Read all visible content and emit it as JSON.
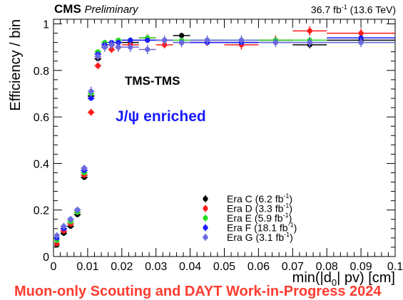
{
  "header": {
    "experiment": "CMS",
    "status": "Preliminary",
    "lumi_energy": "36.7 fb",
    "lumi_sup": "-1",
    "energy": " (13.6 TeV)"
  },
  "annotations": {
    "selection": "TMS-TMS",
    "enrichment": "J/ψ enriched",
    "enrichment_color": "#1a1aff"
  },
  "bottom_banner": "Muon-only Scouting and DAYT Work-in-Progress 2024",
  "chart_data": {
    "type": "scatter",
    "xlabel": "min(|d",
    "xlabel_sub": "0",
    "xlabel_tail": "| pv) [cm]",
    "ylabel": "Efficiency / bin",
    "xlim": [
      0,
      0.1
    ],
    "ylim": [
      0,
      1.02
    ],
    "xticks": [
      "0",
      "0.01",
      "0.02",
      "0.03",
      "0.04",
      "0.05",
      "0.06",
      "0.07",
      "0.08",
      "0.09",
      "0.1"
    ],
    "yticks": [
      "0",
      "0.2",
      "0.4",
      "0.6",
      "0.8",
      "1"
    ],
    "grid": false,
    "legend_position": "bottom-right",
    "series": [
      {
        "name": "Era C (6.2 fb",
        "name_sup": "-1",
        "name_tail": ")",
        "color": "#000000",
        "points": [
          {
            "x": 0.001,
            "y": 0.05,
            "xerr": 0.0005,
            "yerr": 0.01
          },
          {
            "x": 0.003,
            "y": 0.1,
            "xerr": 0.001,
            "yerr": 0.01
          },
          {
            "x": 0.005,
            "y": 0.13,
            "xerr": 0.001,
            "yerr": 0.01
          },
          {
            "x": 0.007,
            "y": 0.18,
            "xerr": 0.001,
            "yerr": 0.01
          },
          {
            "x": 0.009,
            "y": 0.34,
            "xerr": 0.001,
            "yerr": 0.01
          },
          {
            "x": 0.011,
            "y": 0.69,
            "xerr": 0.001,
            "yerr": 0.01
          },
          {
            "x": 0.013,
            "y": 0.85,
            "xerr": 0.001,
            "yerr": 0.01
          },
          {
            "x": 0.015,
            "y": 0.9,
            "xerr": 0.001,
            "yerr": 0.01
          },
          {
            "x": 0.017,
            "y": 0.91,
            "xerr": 0.001,
            "yerr": 0.01
          },
          {
            "x": 0.019,
            "y": 0.92,
            "xerr": 0.001,
            "yerr": 0.01
          },
          {
            "x": 0.0225,
            "y": 0.92,
            "xerr": 0.0025,
            "yerr": 0.012
          },
          {
            "x": 0.0275,
            "y": 0.93,
            "xerr": 0.0025,
            "yerr": 0.012
          },
          {
            "x": 0.0325,
            "y": 0.93,
            "xerr": 0.0025,
            "yerr": 0.012
          },
          {
            "x": 0.0375,
            "y": 0.95,
            "xerr": 0.0025,
            "yerr": 0.012
          },
          {
            "x": 0.045,
            "y": 0.93,
            "xerr": 0.005,
            "yerr": 0.012
          },
          {
            "x": 0.055,
            "y": 0.92,
            "xerr": 0.005,
            "yerr": 0.015
          },
          {
            "x": 0.065,
            "y": 0.93,
            "xerr": 0.005,
            "yerr": 0.015
          },
          {
            "x": 0.075,
            "y": 0.91,
            "xerr": 0.005,
            "yerr": 0.015
          },
          {
            "x": 0.09,
            "y": 0.93,
            "xerr": 0.01,
            "yerr": 0.015
          }
        ]
      },
      {
        "name": "Era D (3.3 fb",
        "name_sup": "-1",
        "name_tail": ")",
        "color": "#ff1a1a",
        "points": [
          {
            "x": 0.001,
            "y": 0.055,
            "xerr": 0.0005,
            "yerr": 0.01
          },
          {
            "x": 0.003,
            "y": 0.11,
            "xerr": 0.001,
            "yerr": 0.012
          },
          {
            "x": 0.005,
            "y": 0.14,
            "xerr": 0.001,
            "yerr": 0.012
          },
          {
            "x": 0.007,
            "y": 0.19,
            "xerr": 0.001,
            "yerr": 0.012
          },
          {
            "x": 0.009,
            "y": 0.35,
            "xerr": 0.001,
            "yerr": 0.012
          },
          {
            "x": 0.011,
            "y": 0.62,
            "xerr": 0.001,
            "yerr": 0.015
          },
          {
            "x": 0.013,
            "y": 0.82,
            "xerr": 0.001,
            "yerr": 0.015
          },
          {
            "x": 0.015,
            "y": 0.91,
            "xerr": 0.001,
            "yerr": 0.015
          },
          {
            "x": 0.017,
            "y": 0.89,
            "xerr": 0.001,
            "yerr": 0.015
          },
          {
            "x": 0.019,
            "y": 0.9,
            "xerr": 0.001,
            "yerr": 0.015
          },
          {
            "x": 0.0225,
            "y": 0.91,
            "xerr": 0.0025,
            "yerr": 0.015
          },
          {
            "x": 0.0275,
            "y": 0.94,
            "xerr": 0.0025,
            "yerr": 0.015
          },
          {
            "x": 0.0325,
            "y": 0.91,
            "xerr": 0.0025,
            "yerr": 0.015
          },
          {
            "x": 0.0375,
            "y": 0.92,
            "xerr": 0.0025,
            "yerr": 0.015
          },
          {
            "x": 0.045,
            "y": 0.92,
            "xerr": 0.005,
            "yerr": 0.015
          },
          {
            "x": 0.055,
            "y": 0.91,
            "xerr": 0.005,
            "yerr": 0.02
          },
          {
            "x": 0.065,
            "y": 0.93,
            "xerr": 0.005,
            "yerr": 0.02
          },
          {
            "x": 0.075,
            "y": 0.97,
            "xerr": 0.005,
            "yerr": 0.02
          },
          {
            "x": 0.09,
            "y": 0.96,
            "xerr": 0.01,
            "yerr": 0.02
          }
        ]
      },
      {
        "name": "Era E (5.9 fb",
        "name_sup": "-1",
        "name_tail": ")",
        "color": "#22dd22",
        "points": [
          {
            "x": 0.001,
            "y": 0.07,
            "xerr": 0.0005,
            "yerr": 0.01
          },
          {
            "x": 0.003,
            "y": 0.12,
            "xerr": 0.001,
            "yerr": 0.01
          },
          {
            "x": 0.005,
            "y": 0.15,
            "xerr": 0.001,
            "yerr": 0.01
          },
          {
            "x": 0.007,
            "y": 0.19,
            "xerr": 0.001,
            "yerr": 0.01
          },
          {
            "x": 0.009,
            "y": 0.36,
            "xerr": 0.001,
            "yerr": 0.01
          },
          {
            "x": 0.011,
            "y": 0.7,
            "xerr": 0.001,
            "yerr": 0.01
          },
          {
            "x": 0.013,
            "y": 0.88,
            "xerr": 0.001,
            "yerr": 0.01
          },
          {
            "x": 0.015,
            "y": 0.92,
            "xerr": 0.001,
            "yerr": 0.01
          },
          {
            "x": 0.017,
            "y": 0.92,
            "xerr": 0.001,
            "yerr": 0.01
          },
          {
            "x": 0.019,
            "y": 0.93,
            "xerr": 0.001,
            "yerr": 0.01
          },
          {
            "x": 0.0225,
            "y": 0.93,
            "xerr": 0.0025,
            "yerr": 0.012
          },
          {
            "x": 0.0275,
            "y": 0.94,
            "xerr": 0.0025,
            "yerr": 0.012
          },
          {
            "x": 0.0325,
            "y": 0.93,
            "xerr": 0.0025,
            "yerr": 0.012
          },
          {
            "x": 0.0375,
            "y": 0.93,
            "xerr": 0.0025,
            "yerr": 0.012
          },
          {
            "x": 0.045,
            "y": 0.93,
            "xerr": 0.005,
            "yerr": 0.012
          },
          {
            "x": 0.055,
            "y": 0.93,
            "xerr": 0.005,
            "yerr": 0.015
          },
          {
            "x": 0.065,
            "y": 0.93,
            "xerr": 0.005,
            "yerr": 0.015
          },
          {
            "x": 0.075,
            "y": 0.93,
            "xerr": 0.005,
            "yerr": 0.015
          },
          {
            "x": 0.09,
            "y": 0.92,
            "xerr": 0.01,
            "yerr": 0.015
          }
        ]
      },
      {
        "name": "Era F (18.1 fb",
        "name_sup": "-1",
        "name_tail": ")",
        "color": "#1a1aff",
        "points": [
          {
            "x": 0.001,
            "y": 0.08,
            "xerr": 0.0005,
            "yerr": 0.008
          },
          {
            "x": 0.003,
            "y": 0.12,
            "xerr": 0.001,
            "yerr": 0.008
          },
          {
            "x": 0.005,
            "y": 0.16,
            "xerr": 0.001,
            "yerr": 0.008
          },
          {
            "x": 0.007,
            "y": 0.2,
            "xerr": 0.001,
            "yerr": 0.008
          },
          {
            "x": 0.009,
            "y": 0.37,
            "xerr": 0.001,
            "yerr": 0.008
          },
          {
            "x": 0.011,
            "y": 0.68,
            "xerr": 0.001,
            "yerr": 0.008
          },
          {
            "x": 0.013,
            "y": 0.87,
            "xerr": 0.001,
            "yerr": 0.008
          },
          {
            "x": 0.015,
            "y": 0.91,
            "xerr": 0.001,
            "yerr": 0.008
          },
          {
            "x": 0.017,
            "y": 0.92,
            "xerr": 0.001,
            "yerr": 0.008
          },
          {
            "x": 0.019,
            "y": 0.92,
            "xerr": 0.001,
            "yerr": 0.008
          },
          {
            "x": 0.0225,
            "y": 0.93,
            "xerr": 0.0025,
            "yerr": 0.008
          },
          {
            "x": 0.0275,
            "y": 0.93,
            "xerr": 0.0025,
            "yerr": 0.008
          },
          {
            "x": 0.0325,
            "y": 0.93,
            "xerr": 0.0025,
            "yerr": 0.008
          },
          {
            "x": 0.0375,
            "y": 0.92,
            "xerr": 0.0025,
            "yerr": 0.008
          },
          {
            "x": 0.045,
            "y": 0.92,
            "xerr": 0.005,
            "yerr": 0.008
          },
          {
            "x": 0.055,
            "y": 0.92,
            "xerr": 0.005,
            "yerr": 0.01
          },
          {
            "x": 0.065,
            "y": 0.92,
            "xerr": 0.005,
            "yerr": 0.01
          },
          {
            "x": 0.075,
            "y": 0.92,
            "xerr": 0.005,
            "yerr": 0.01
          },
          {
            "x": 0.09,
            "y": 0.94,
            "xerr": 0.01,
            "yerr": 0.01
          }
        ]
      },
      {
        "name": "Era G (3.1 fb",
        "name_sup": "-1",
        "name_tail": ")",
        "color": "#6a6adf",
        "points": [
          {
            "x": 0.001,
            "y": 0.09,
            "xerr": 0.0005,
            "yerr": 0.015
          },
          {
            "x": 0.003,
            "y": 0.13,
            "xerr": 0.001,
            "yerr": 0.015
          },
          {
            "x": 0.005,
            "y": 0.16,
            "xerr": 0.001,
            "yerr": 0.015
          },
          {
            "x": 0.007,
            "y": 0.2,
            "xerr": 0.001,
            "yerr": 0.015
          },
          {
            "x": 0.009,
            "y": 0.38,
            "xerr": 0.001,
            "yerr": 0.015
          },
          {
            "x": 0.011,
            "y": 0.71,
            "xerr": 0.001,
            "yerr": 0.02
          },
          {
            "x": 0.013,
            "y": 0.86,
            "xerr": 0.001,
            "yerr": 0.02
          },
          {
            "x": 0.015,
            "y": 0.9,
            "xerr": 0.001,
            "yerr": 0.02
          },
          {
            "x": 0.017,
            "y": 0.91,
            "xerr": 0.001,
            "yerr": 0.02
          },
          {
            "x": 0.019,
            "y": 0.9,
            "xerr": 0.001,
            "yerr": 0.02
          },
          {
            "x": 0.0225,
            "y": 0.9,
            "xerr": 0.0025,
            "yerr": 0.02
          },
          {
            "x": 0.0275,
            "y": 0.89,
            "xerr": 0.0025,
            "yerr": 0.02
          },
          {
            "x": 0.0325,
            "y": 0.93,
            "xerr": 0.0025,
            "yerr": 0.02
          },
          {
            "x": 0.0375,
            "y": 0.92,
            "xerr": 0.0025,
            "yerr": 0.02
          },
          {
            "x": 0.045,
            "y": 0.93,
            "xerr": 0.005,
            "yerr": 0.02
          },
          {
            "x": 0.055,
            "y": 0.93,
            "xerr": 0.005,
            "yerr": 0.02
          },
          {
            "x": 0.065,
            "y": 0.92,
            "xerr": 0.005,
            "yerr": 0.02
          },
          {
            "x": 0.075,
            "y": 0.92,
            "xerr": 0.005,
            "yerr": 0.02
          },
          {
            "x": 0.09,
            "y": 0.92,
            "xerr": 0.01,
            "yerr": 0.02
          }
        ]
      }
    ]
  }
}
